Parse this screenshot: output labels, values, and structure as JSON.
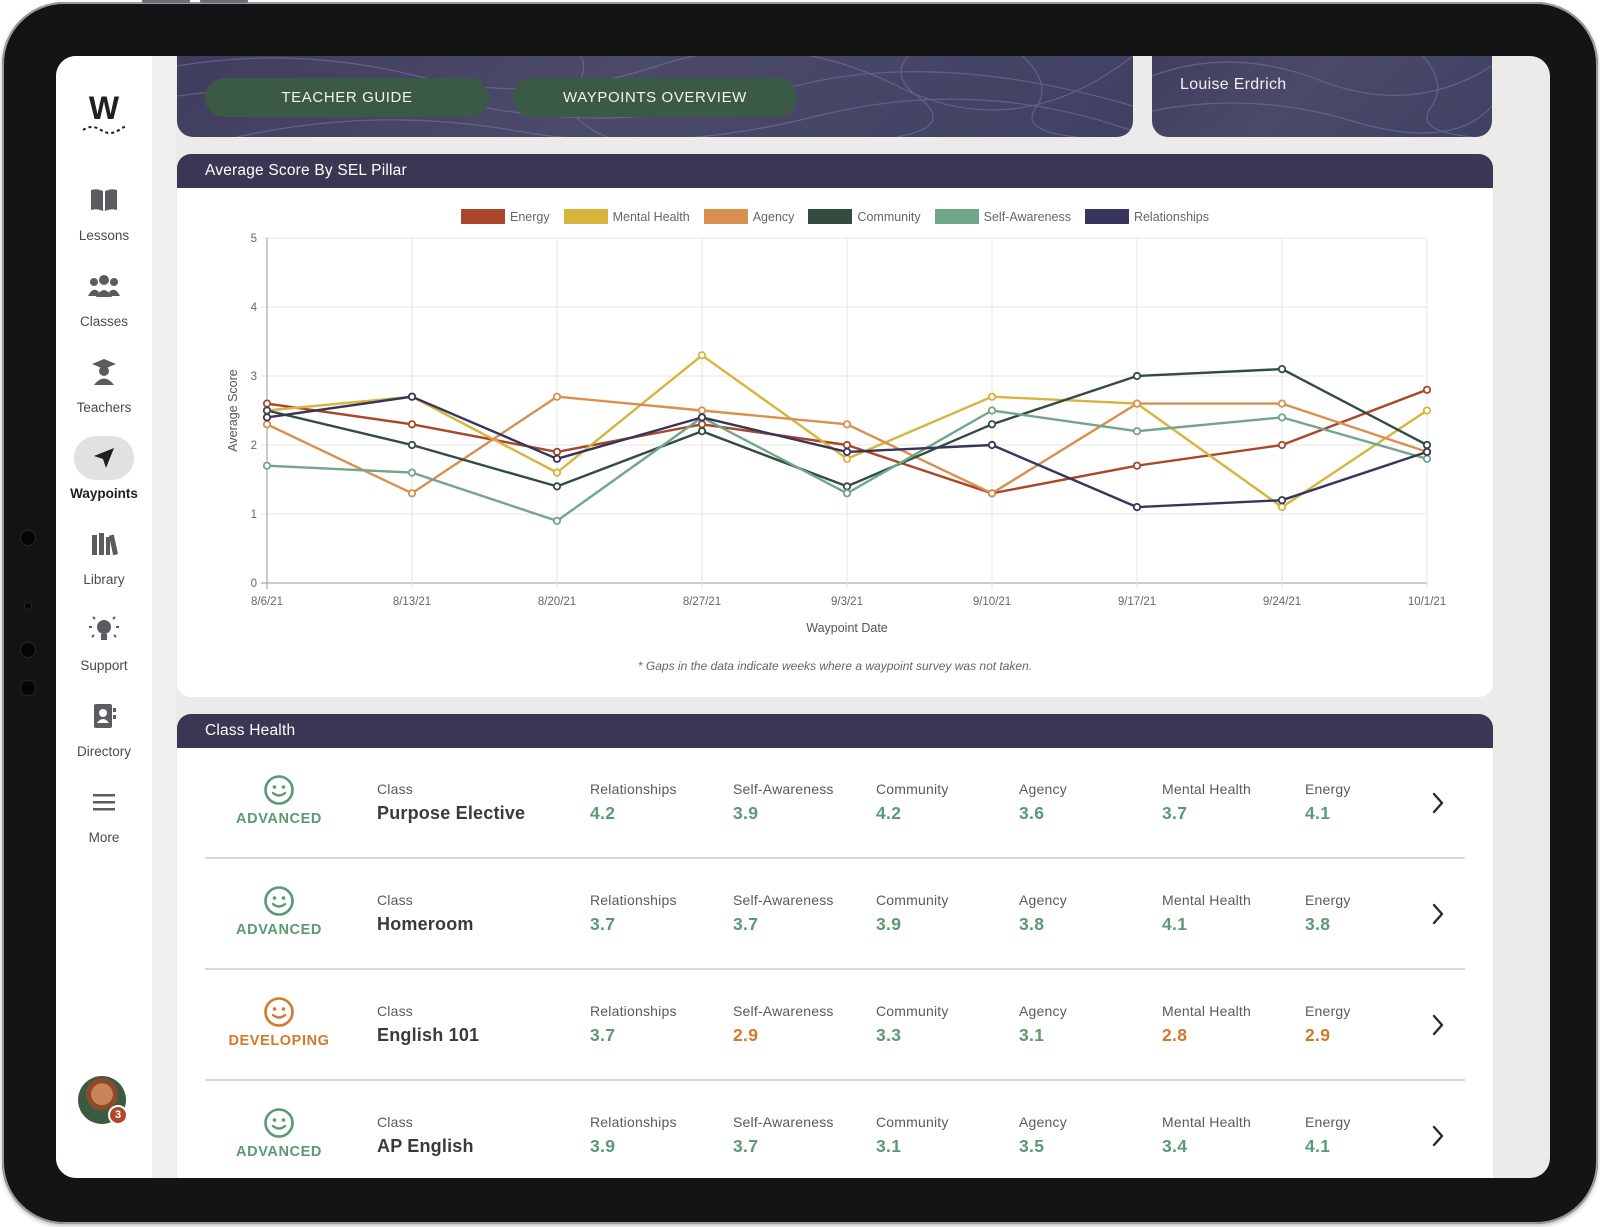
{
  "app": {
    "logo_letter": "W",
    "theme": {
      "header": "#3b3653",
      "button_green": "#3b5a46",
      "good": "#5a9a72",
      "warn": "#d4782a"
    }
  },
  "sidebar": {
    "items": [
      {
        "label": "Lessons",
        "icon": "book-icon"
      },
      {
        "label": "Classes",
        "icon": "group-icon"
      },
      {
        "label": "Teachers",
        "icon": "teacher-icon"
      },
      {
        "label": "Waypoints",
        "icon": "navigation-arrow-icon",
        "active": true
      },
      {
        "label": "Library",
        "icon": "library-icon"
      },
      {
        "label": "Support",
        "icon": "lightbulb-icon"
      },
      {
        "label": "Directory",
        "icon": "contact-book-icon"
      },
      {
        "label": "More",
        "icon": "menu-icon"
      }
    ],
    "avatar_badge": "3"
  },
  "banner": {
    "teacher_guide_label": "TEACHER GUIDE",
    "waypoints_overview_label": "WAYPOINTS OVERVIEW",
    "user_name": "Louise Erdrich"
  },
  "sel_chart": {
    "title": "Average Score By SEL Pillar",
    "note": "* Gaps in the data indicate weeks where a waypoint survey was not taken."
  },
  "chart_data": {
    "type": "line",
    "xlabel": "Waypoint Date",
    "ylabel": "Average Score",
    "ylim": [
      0,
      5
    ],
    "yticks": [
      "0",
      "1",
      "2",
      "3",
      "4",
      "5"
    ],
    "categories": [
      "8/6/21",
      "8/13/21",
      "8/20/21",
      "8/27/21",
      "9/3/21",
      "9/10/21",
      "9/17/21",
      "9/24/21",
      "10/1/21"
    ],
    "grid": true,
    "legend_position": "top",
    "series": [
      {
        "name": "Energy",
        "color": "#a8472a",
        "values": [
          2.6,
          2.3,
          1.9,
          2.3,
          2.0,
          1.3,
          1.7,
          2.0,
          2.8
        ]
      },
      {
        "name": "Mental Health",
        "color": "#d8b43c",
        "values": [
          2.5,
          2.7,
          1.6,
          3.3,
          1.8,
          2.7,
          2.6,
          1.1,
          2.5
        ]
      },
      {
        "name": "Agency",
        "color": "#d98f4e",
        "values": [
          2.3,
          1.3,
          2.7,
          2.5,
          2.3,
          1.3,
          2.6,
          2.6,
          1.9
        ]
      },
      {
        "name": "Community",
        "color": "#324d40",
        "values": [
          2.5,
          2.0,
          1.4,
          2.2,
          1.4,
          2.3,
          3.0,
          3.1,
          2.0
        ]
      },
      {
        "name": "Self-Awareness",
        "color": "#72a68a",
        "values": [
          1.7,
          1.6,
          0.9,
          2.4,
          1.3,
          2.5,
          2.2,
          2.4,
          1.8
        ]
      },
      {
        "name": "Relationships",
        "color": "#38355a",
        "values": [
          2.4,
          2.7,
          1.8,
          2.4,
          1.9,
          2.0,
          1.1,
          1.2,
          1.9
        ]
      }
    ]
  },
  "class_health": {
    "title": "Class Health",
    "class_caption": "Class",
    "rows": [
      {
        "status": "ADVANCED",
        "status_color": "#5a9a72",
        "name": "Purpose Elective",
        "metrics": [
          {
            "label": "Relationships",
            "value": "4.2",
            "color": "#5a9a72"
          },
          {
            "label": "Self-Awareness",
            "value": "3.9",
            "color": "#5a9a72"
          },
          {
            "label": "Community",
            "value": "4.2",
            "color": "#5a9a72"
          },
          {
            "label": "Agency",
            "value": "3.6",
            "color": "#5a9a72"
          },
          {
            "label": "Mental Health",
            "value": "3.7",
            "color": "#5a9a72"
          },
          {
            "label": "Energy",
            "value": "4.1",
            "color": "#5a9a72"
          }
        ]
      },
      {
        "status": "ADVANCED",
        "status_color": "#5a9a72",
        "name": "Homeroom",
        "metrics": [
          {
            "label": "Relationships",
            "value": "3.7",
            "color": "#5a9a72"
          },
          {
            "label": "Self-Awareness",
            "value": "3.7",
            "color": "#5a9a72"
          },
          {
            "label": "Community",
            "value": "3.9",
            "color": "#5a9a72"
          },
          {
            "label": "Agency",
            "value": "3.8",
            "color": "#5a9a72"
          },
          {
            "label": "Mental Health",
            "value": "4.1",
            "color": "#5a9a72"
          },
          {
            "label": "Energy",
            "value": "3.8",
            "color": "#5a9a72"
          }
        ]
      },
      {
        "status": "DEVELOPING",
        "status_color": "#d4782a",
        "name": "English 101",
        "metrics": [
          {
            "label": "Relationships",
            "value": "3.7",
            "color": "#5a9a72"
          },
          {
            "label": "Self-Awareness",
            "value": "2.9",
            "color": "#d4782a"
          },
          {
            "label": "Community",
            "value": "3.3",
            "color": "#5a9a72"
          },
          {
            "label": "Agency",
            "value": "3.1",
            "color": "#5a9a72"
          },
          {
            "label": "Mental Health",
            "value": "2.8",
            "color": "#d4782a"
          },
          {
            "label": "Energy",
            "value": "2.9",
            "color": "#d4782a"
          }
        ]
      },
      {
        "status": "ADVANCED",
        "status_color": "#5a9a72",
        "name": "AP English",
        "metrics": [
          {
            "label": "Relationships",
            "value": "3.9",
            "color": "#5a9a72"
          },
          {
            "label": "Self-Awareness",
            "value": "3.7",
            "color": "#5a9a72"
          },
          {
            "label": "Community",
            "value": "3.1",
            "color": "#5a9a72"
          },
          {
            "label": "Agency",
            "value": "3.5",
            "color": "#5a9a72"
          },
          {
            "label": "Mental Health",
            "value": "3.4",
            "color": "#5a9a72"
          },
          {
            "label": "Energy",
            "value": "4.1",
            "color": "#5a9a72"
          }
        ]
      }
    ]
  }
}
